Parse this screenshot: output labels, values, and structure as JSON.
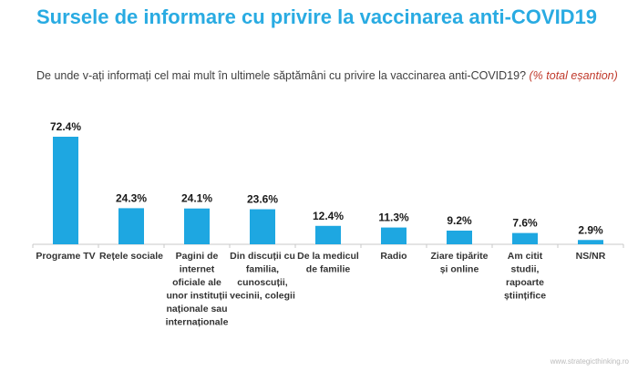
{
  "header": {
    "title": "Sursele de informare cu privire la vaccinarea anti-COVID19",
    "question": "De unde v-ați informați cel mai mult în ultimele săptămâni cu privire la vaccinarea anti-COVID19?",
    "note": "(% total eșantion)"
  },
  "footer": {
    "source": "www.strategicthinking.ro"
  },
  "colors": {
    "title": "#29abe2",
    "bar": "#1ea7e1",
    "note": "#c0392b"
  },
  "chart_data": {
    "type": "bar",
    "categories": [
      "Programe TV",
      "Rețele sociale",
      "Pagini de internet oficiale ale unor instituții naționale sau internaționale",
      "Din discuții cu familia, cunoscuții, vecinii, colegii",
      "De la medicul de familie",
      "Radio",
      "Ziare tipărite și online",
      "Am citit studii, rapoarte științifice",
      "NS/NR"
    ],
    "category_lines": [
      [
        "Programe TV"
      ],
      [
        "Rețele sociale"
      ],
      [
        "Pagini de",
        "internet",
        "oficiale ale",
        "unor instituții",
        "naționale sau",
        "internaționale"
      ],
      [
        "Din discuții cu",
        "familia,",
        "cunoscuții,",
        "vecinii, colegii"
      ],
      [
        "De la medicul",
        "de familie"
      ],
      [
        "Radio"
      ],
      [
        "Ziare tipărite",
        "și online"
      ],
      [
        "Am citit",
        "studii,",
        "rapoarte",
        "științifice"
      ],
      [
        "NS/NR"
      ]
    ],
    "values": [
      72.4,
      24.3,
      24.1,
      23.6,
      12.4,
      11.3,
      9.2,
      7.6,
      2.9
    ],
    "value_labels": [
      "72.4%",
      "24.3%",
      "24.1%",
      "23.6%",
      "12.4%",
      "11.3%",
      "9.2%",
      "7.6%",
      "2.9%"
    ],
    "ylim": [
      0,
      80
    ],
    "grid": false,
    "legend": "none"
  }
}
